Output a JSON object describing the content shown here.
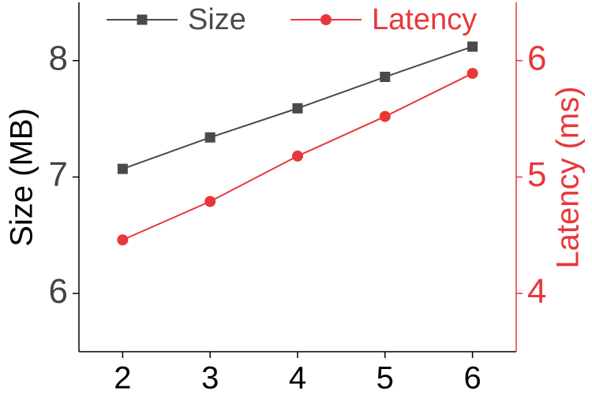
{
  "chart_data": {
    "type": "line",
    "x": [
      2,
      3,
      4,
      5,
      6
    ],
    "xlim": [
      1.5,
      6.5
    ],
    "xticks": [
      2,
      3,
      4,
      5,
      6
    ],
    "ylim": [
      5.5,
      8.5
    ],
    "yticks": [
      6,
      7,
      8
    ],
    "y2lim": [
      3.5,
      6.5
    ],
    "y2ticks": [
      4,
      5,
      6
    ],
    "ylabel": "Size (MB)",
    "y2label": "Latency (ms)",
    "series": [
      {
        "name": "Size",
        "color": "#4a4a4a",
        "marker": "square",
        "values": [
          7.07,
          7.34,
          7.59,
          7.86,
          8.12
        ]
      },
      {
        "name": "Latency",
        "color": "#e8373a",
        "marker": "circle",
        "axis": "y2",
        "values": [
          4.46,
          4.79,
          5.18,
          5.52,
          5.89
        ]
      }
    ]
  }
}
